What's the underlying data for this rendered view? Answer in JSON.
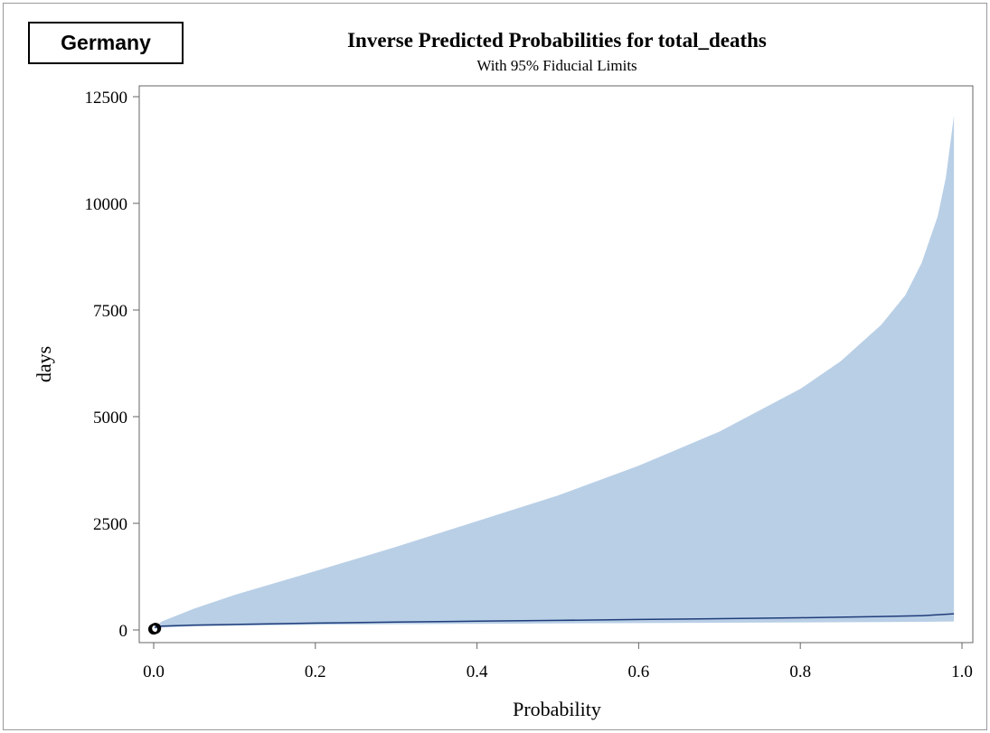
{
  "label_box": {
    "text": "Germany"
  },
  "chart_data": {
    "type": "area",
    "title": "Inverse Predicted Probabilities for total_deaths",
    "subtitle": "With 95% Fiducial Limits",
    "xlabel": "Probability",
    "ylabel": "days",
    "xlim": [
      0.0,
      1.0
    ],
    "ylim": [
      0,
      12500
    ],
    "x_ticks": [
      0.0,
      0.2,
      0.4,
      0.6,
      0.8,
      1.0
    ],
    "x_tick_labels": [
      "0.0",
      "0.2",
      "0.4",
      "0.6",
      "0.8",
      "1.0"
    ],
    "y_ticks": [
      0,
      2500,
      5000,
      7500,
      10000,
      12500
    ],
    "y_tick_labels": [
      "0",
      "2500",
      "5000",
      "7500",
      "10000",
      "12500"
    ],
    "grid": false,
    "colors": {
      "band": "#b9cfe6",
      "line": "#1f3d7a",
      "marker": "#000000",
      "axis": "#666666"
    },
    "predicted": {
      "x": [
        0.001,
        0.01,
        0.05,
        0.1,
        0.2,
        0.3,
        0.4,
        0.5,
        0.6,
        0.7,
        0.8,
        0.9,
        0.95,
        0.99
      ],
      "y": [
        60,
        90,
        115,
        130,
        160,
        185,
        205,
        225,
        245,
        265,
        285,
        315,
        335,
        380
      ]
    },
    "fiducial_upper": {
      "x": [
        0.001,
        0.01,
        0.05,
        0.1,
        0.2,
        0.3,
        0.4,
        0.5,
        0.6,
        0.7,
        0.8,
        0.85,
        0.9,
        0.93,
        0.95,
        0.97,
        0.98,
        0.99
      ],
      "y": [
        60,
        200,
        500,
        820,
        1380,
        1950,
        2550,
        3150,
        3850,
        4650,
        5650,
        6300,
        7150,
        7850,
        8600,
        9700,
        10600,
        12050
      ]
    },
    "fiducial_lower": {
      "x": [
        0.001,
        0.01,
        0.05,
        0.1,
        0.2,
        0.3,
        0.4,
        0.5,
        0.6,
        0.7,
        0.8,
        0.9,
        0.95,
        0.99
      ],
      "y": [
        30,
        60,
        85,
        100,
        120,
        135,
        145,
        155,
        162,
        170,
        178,
        185,
        190,
        200
      ]
    },
    "observed_points": {
      "x": [
        0.0,
        0.001,
        0.002,
        0.0025
      ],
      "y": [
        20,
        30,
        40,
        35
      ]
    }
  }
}
